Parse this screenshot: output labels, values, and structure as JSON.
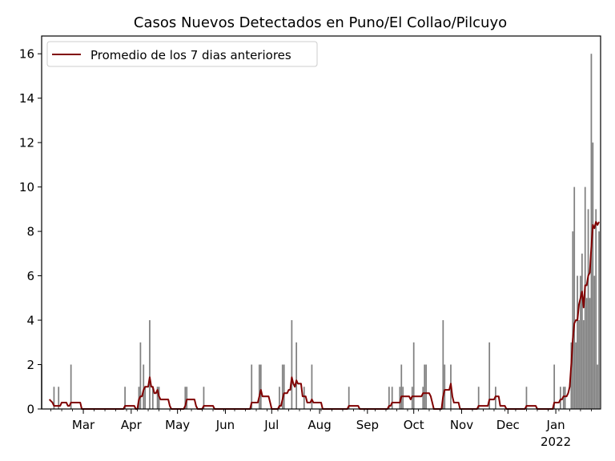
{
  "chart_data": {
    "type": "bar",
    "title": "Casos Nuevos Detectados en Puno/El Collao/Pilcuyo",
    "xlabel": "",
    "ylabel": "",
    "ylim": [
      0,
      16.8
    ],
    "yticks": [
      0,
      2,
      4,
      6,
      8,
      10,
      12,
      14,
      16
    ],
    "xlim": [
      "2021-02-02",
      "2022-01-30"
    ],
    "xticks": [
      {
        "date": "2021-03-01",
        "label": "Mar",
        "sublabel": ""
      },
      {
        "date": "2021-04-01",
        "label": "Apr",
        "sublabel": ""
      },
      {
        "date": "2021-05-01",
        "label": "May",
        "sublabel": ""
      },
      {
        "date": "2021-06-01",
        "label": "Jun",
        "sublabel": ""
      },
      {
        "date": "2021-07-01",
        "label": "Jul",
        "sublabel": ""
      },
      {
        "date": "2021-08-01",
        "label": "Aug",
        "sublabel": ""
      },
      {
        "date": "2021-09-01",
        "label": "Sep",
        "sublabel": ""
      },
      {
        "date": "2021-10-01",
        "label": "Oct",
        "sublabel": ""
      },
      {
        "date": "2021-11-01",
        "label": "Nov",
        "sublabel": ""
      },
      {
        "date": "2021-12-01",
        "label": "Dec",
        "sublabel": ""
      },
      {
        "date": "2022-01-01",
        "label": "Jan",
        "sublabel": "2022"
      }
    ],
    "grid": false,
    "legend_position": "upper-left",
    "series": [
      {
        "kind": "bar",
        "color": "#808080",
        "points": [
          [
            "2021-02-02",
            2
          ],
          [
            "2021-02-10",
            1
          ],
          [
            "2021-02-13",
            1
          ],
          [
            "2021-02-21",
            2
          ],
          [
            "2021-03-28",
            1
          ],
          [
            "2021-04-06",
            1
          ],
          [
            "2021-04-07",
            3
          ],
          [
            "2021-04-09",
            2
          ],
          [
            "2021-04-10",
            1
          ],
          [
            "2021-04-13",
            4
          ],
          [
            "2021-04-15",
            1
          ],
          [
            "2021-04-18",
            1
          ],
          [
            "2021-04-19",
            1
          ],
          [
            "2021-05-06",
            1
          ],
          [
            "2021-05-07",
            1
          ],
          [
            "2021-05-18",
            1
          ],
          [
            "2021-06-18",
            2
          ],
          [
            "2021-06-23",
            2
          ],
          [
            "2021-06-24",
            2
          ],
          [
            "2021-07-06",
            1
          ],
          [
            "2021-07-08",
            2
          ],
          [
            "2021-07-09",
            2
          ],
          [
            "2021-07-14",
            4
          ],
          [
            "2021-07-17",
            3
          ],
          [
            "2021-07-22",
            1
          ],
          [
            "2021-07-27",
            2
          ],
          [
            "2021-08-20",
            1
          ],
          [
            "2021-09-15",
            1
          ],
          [
            "2021-09-17",
            1
          ],
          [
            "2021-09-22",
            1
          ],
          [
            "2021-09-23",
            2
          ],
          [
            "2021-09-24",
            1
          ],
          [
            "2021-09-30",
            1
          ],
          [
            "2021-10-01",
            3
          ],
          [
            "2021-10-07",
            1
          ],
          [
            "2021-10-08",
            2
          ],
          [
            "2021-10-09",
            2
          ],
          [
            "2021-10-20",
            4
          ],
          [
            "2021-10-21",
            2
          ],
          [
            "2021-10-25",
            2
          ],
          [
            "2021-11-12",
            1
          ],
          [
            "2021-11-19",
            3
          ],
          [
            "2021-11-23",
            1
          ],
          [
            "2021-12-13",
            1
          ],
          [
            "2021-12-31",
            2
          ],
          [
            "2022-01-04",
            1
          ],
          [
            "2022-01-06",
            1
          ],
          [
            "2022-01-07",
            1
          ],
          [
            "2022-01-11",
            3
          ],
          [
            "2022-01-12",
            8
          ],
          [
            "2022-01-13",
            10
          ],
          [
            "2022-01-14",
            3
          ],
          [
            "2022-01-15",
            6
          ],
          [
            "2022-01-16",
            4
          ],
          [
            "2022-01-17",
            6
          ],
          [
            "2022-01-18",
            7
          ],
          [
            "2022-01-19",
            4
          ],
          [
            "2022-01-20",
            10
          ],
          [
            "2022-01-21",
            5
          ],
          [
            "2022-01-22",
            9
          ],
          [
            "2022-01-23",
            5
          ],
          [
            "2022-01-24",
            16
          ],
          [
            "2022-01-25",
            12
          ],
          [
            "2022-01-26",
            6
          ],
          [
            "2022-01-27",
            9
          ],
          [
            "2022-01-28",
            2
          ],
          [
            "2022-01-29",
            8
          ]
        ]
      },
      {
        "kind": "line",
        "name": "Promedio de los 7 dias anteriores",
        "color": "#800000",
        "points": [
          [
            "2021-02-07",
            0.43
          ],
          [
            "2021-02-09",
            0.29
          ],
          [
            "2021-02-10",
            0.14
          ],
          [
            "2021-02-14",
            0.14
          ],
          [
            "2021-02-15",
            0.29
          ],
          [
            "2021-02-18",
            0.29
          ],
          [
            "2021-02-19",
            0.14
          ],
          [
            "2021-02-20",
            0.14
          ],
          [
            "2021-02-21",
            0.29
          ],
          [
            "2021-02-27",
            0.29
          ],
          [
            "2021-02-28",
            0.0
          ],
          [
            "2021-03-27",
            0.0
          ],
          [
            "2021-03-28",
            0.14
          ],
          [
            "2021-04-03",
            0.14
          ],
          [
            "2021-04-04",
            0.0
          ],
          [
            "2021-04-05",
            0.0
          ],
          [
            "2021-04-06",
            0.43
          ],
          [
            "2021-04-07",
            0.57
          ],
          [
            "2021-04-08",
            0.57
          ],
          [
            "2021-04-09",
            0.86
          ],
          [
            "2021-04-10",
            1.0
          ],
          [
            "2021-04-12",
            1.0
          ],
          [
            "2021-04-13",
            1.43
          ],
          [
            "2021-04-14",
            1.0
          ],
          [
            "2021-04-15",
            1.0
          ],
          [
            "2021-04-16",
            0.71
          ],
          [
            "2021-04-17",
            0.71
          ],
          [
            "2021-04-18",
            0.86
          ],
          [
            "2021-04-19",
            0.57
          ],
          [
            "2021-04-20",
            0.43
          ],
          [
            "2021-04-25",
            0.43
          ],
          [
            "2021-04-26",
            0.14
          ],
          [
            "2021-04-27",
            0.0
          ],
          [
            "2021-05-05",
            0.0
          ],
          [
            "2021-05-06",
            0.14
          ],
          [
            "2021-05-07",
            0.43
          ],
          [
            "2021-05-12",
            0.43
          ],
          [
            "2021-05-13",
            0.14
          ],
          [
            "2021-05-14",
            0.0
          ],
          [
            "2021-05-17",
            0.0
          ],
          [
            "2021-05-18",
            0.14
          ],
          [
            "2021-05-24",
            0.14
          ],
          [
            "2021-05-25",
            0.0
          ],
          [
            "2021-06-17",
            0.0
          ],
          [
            "2021-06-18",
            0.29
          ],
          [
            "2021-06-22",
            0.29
          ],
          [
            "2021-06-23",
            0.57
          ],
          [
            "2021-06-24",
            0.86
          ],
          [
            "2021-06-25",
            0.57
          ],
          [
            "2021-06-29",
            0.57
          ],
          [
            "2021-06-30",
            0.29
          ],
          [
            "2021-07-01",
            0.0
          ],
          [
            "2021-07-05",
            0.0
          ],
          [
            "2021-07-06",
            0.14
          ],
          [
            "2021-07-07",
            0.14
          ],
          [
            "2021-07-08",
            0.43
          ],
          [
            "2021-07-09",
            0.71
          ],
          [
            "2021-07-11",
            0.71
          ],
          [
            "2021-07-12",
            0.86
          ],
          [
            "2021-07-13",
            0.86
          ],
          [
            "2021-07-14",
            1.43
          ],
          [
            "2021-07-15",
            1.14
          ],
          [
            "2021-07-16",
            1.0
          ],
          [
            "2021-07-17",
            1.29
          ],
          [
            "2021-07-18",
            1.14
          ],
          [
            "2021-07-20",
            1.14
          ],
          [
            "2021-07-21",
            0.57
          ],
          [
            "2021-07-22",
            0.57
          ],
          [
            "2021-07-23",
            0.57
          ],
          [
            "2021-07-24",
            0.29
          ],
          [
            "2021-07-26",
            0.29
          ],
          [
            "2021-07-27",
            0.43
          ],
          [
            "2021-07-28",
            0.29
          ],
          [
            "2021-08-02",
            0.29
          ],
          [
            "2021-08-03",
            0.0
          ],
          [
            "2021-08-19",
            0.0
          ],
          [
            "2021-08-20",
            0.14
          ],
          [
            "2021-08-26",
            0.14
          ],
          [
            "2021-08-27",
            0.0
          ],
          [
            "2021-09-14",
            0.0
          ],
          [
            "2021-09-15",
            0.14
          ],
          [
            "2021-09-16",
            0.14
          ],
          [
            "2021-09-17",
            0.29
          ],
          [
            "2021-09-21",
            0.29
          ],
          [
            "2021-09-22",
            0.29
          ],
          [
            "2021-09-23",
            0.57
          ],
          [
            "2021-09-28",
            0.57
          ],
          [
            "2021-09-29",
            0.43
          ],
          [
            "2021-09-30",
            0.57
          ],
          [
            "2021-10-01",
            0.57
          ],
          [
            "2021-10-02",
            0.57
          ],
          [
            "2021-10-06",
            0.57
          ],
          [
            "2021-10-07",
            0.71
          ],
          [
            "2021-10-08",
            0.71
          ],
          [
            "2021-10-11",
            0.71
          ],
          [
            "2021-10-12",
            0.57
          ],
          [
            "2021-10-13",
            0.29
          ],
          [
            "2021-10-14",
            0.0
          ],
          [
            "2021-10-19",
            0.0
          ],
          [
            "2021-10-20",
            0.57
          ],
          [
            "2021-10-21",
            0.86
          ],
          [
            "2021-10-24",
            0.86
          ],
          [
            "2021-10-25",
            1.14
          ],
          [
            "2021-10-26",
            0.57
          ],
          [
            "2021-10-27",
            0.29
          ],
          [
            "2021-10-30",
            0.29
          ],
          [
            "2021-10-31",
            0.0
          ],
          [
            "2021-11-11",
            0.0
          ],
          [
            "2021-11-12",
            0.14
          ],
          [
            "2021-11-18",
            0.14
          ],
          [
            "2021-11-19",
            0.43
          ],
          [
            "2021-11-22",
            0.43
          ],
          [
            "2021-11-23",
            0.57
          ],
          [
            "2021-11-25",
            0.57
          ],
          [
            "2021-11-26",
            0.14
          ],
          [
            "2021-11-29",
            0.14
          ],
          [
            "2021-11-30",
            0.0
          ],
          [
            "2021-12-12",
            0.0
          ],
          [
            "2021-12-13",
            0.14
          ],
          [
            "2021-12-19",
            0.14
          ],
          [
            "2021-12-20",
            0.0
          ],
          [
            "2021-12-30",
            0.0
          ],
          [
            "2021-12-31",
            0.29
          ],
          [
            "2022-01-03",
            0.29
          ],
          [
            "2022-01-04",
            0.43
          ],
          [
            "2022-01-05",
            0.43
          ],
          [
            "2022-01-06",
            0.57
          ],
          [
            "2022-01-07",
            0.57
          ],
          [
            "2022-01-08",
            0.57
          ],
          [
            "2022-01-09",
            0.71
          ],
          [
            "2022-01-10",
            1.0
          ],
          [
            "2022-01-11",
            2.0
          ],
          [
            "2022-01-12",
            3.14
          ],
          [
            "2022-01-13",
            3.86
          ],
          [
            "2022-01-14",
            4.0
          ],
          [
            "2022-01-15",
            4.0
          ],
          [
            "2022-01-16",
            4.71
          ],
          [
            "2022-01-17",
            5.0
          ],
          [
            "2022-01-18",
            5.29
          ],
          [
            "2022-01-19",
            4.57
          ],
          [
            "2022-01-20",
            5.57
          ],
          [
            "2022-01-21",
            5.57
          ],
          [
            "2022-01-22",
            6.0
          ],
          [
            "2022-01-23",
            6.14
          ],
          [
            "2022-01-24",
            7.29
          ],
          [
            "2022-01-25",
            8.29
          ],
          [
            "2022-01-26",
            8.14
          ],
          [
            "2022-01-27",
            8.43
          ],
          [
            "2022-01-28",
            8.29
          ],
          [
            "2022-01-29",
            8.43
          ]
        ]
      }
    ]
  }
}
